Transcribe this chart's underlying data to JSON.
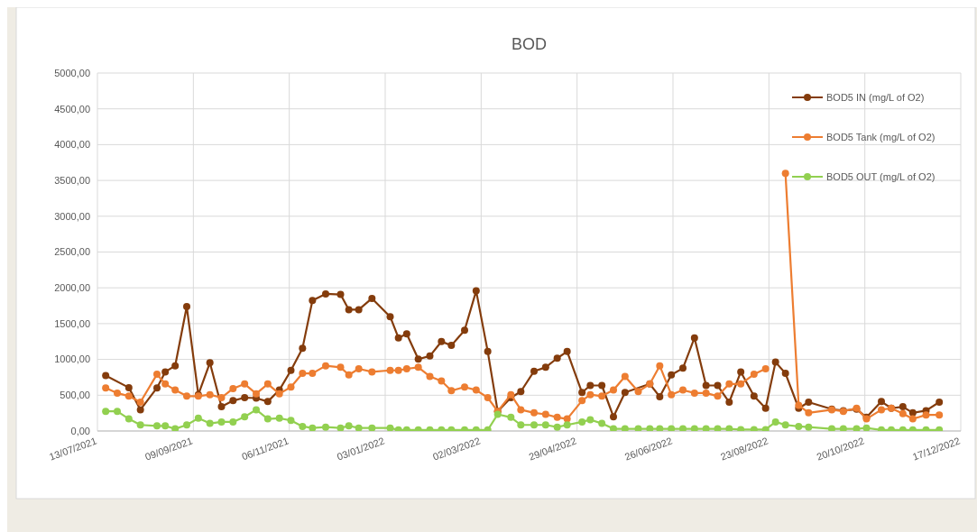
{
  "chart_data": {
    "type": "line",
    "title": "BOD",
    "marker": "circle",
    "grid": true,
    "legend": "top right",
    "xlim": [
      "2021-07-13",
      "2022-12-17"
    ],
    "xticks": [
      {
        "value": "2021-07-13",
        "label": "13/07/2021"
      },
      {
        "value": "2021-09-09",
        "label": "09/09/2021"
      },
      {
        "value": "2021-11-06",
        "label": "06/11/2021"
      },
      {
        "value": "2022-01-03",
        "label": "03/01/2022"
      },
      {
        "value": "2022-03-02",
        "label": "02/03/2022"
      },
      {
        "value": "2022-04-29",
        "label": "29/04/2022"
      },
      {
        "value": "2022-06-26",
        "label": "26/06/2022"
      },
      {
        "value": "2022-08-23",
        "label": "23/08/2022"
      },
      {
        "value": "2022-10-20",
        "label": "20/10/2022"
      },
      {
        "value": "2022-12-17",
        "label": "17/12/2022"
      }
    ],
    "ylim": [
      0,
      5000
    ],
    "yticks": [
      {
        "value": 0,
        "label": "0,00"
      },
      {
        "value": 500,
        "label": "500,00"
      },
      {
        "value": 1000,
        "label": "1000,00"
      },
      {
        "value": 1500,
        "label": "1500,00"
      },
      {
        "value": 2000,
        "label": "2000,00"
      },
      {
        "value": 2500,
        "label": "2500,00"
      },
      {
        "value": 3000,
        "label": "3000,00"
      },
      {
        "value": 3500,
        "label": "3500,00"
      },
      {
        "value": 4000,
        "label": "4000,00"
      },
      {
        "value": 4500,
        "label": "4500,00"
      },
      {
        "value": 5000,
        "label": "5000,00"
      }
    ],
    "x": [
      "2021-07-18",
      "2021-07-25",
      "2021-08-01",
      "2021-08-08",
      "2021-08-18",
      "2021-08-23",
      "2021-08-29",
      "2021-09-05",
      "2021-09-12",
      "2021-09-19",
      "2021-09-26",
      "2021-10-03",
      "2021-10-10",
      "2021-10-17",
      "2021-10-24",
      "2021-10-31",
      "2021-11-07",
      "2021-11-14",
      "2021-11-20",
      "2021-11-28",
      "2021-12-07",
      "2021-12-12",
      "2021-12-18",
      "2021-12-26",
      "2022-01-06",
      "2022-01-11",
      "2022-01-16",
      "2022-01-23",
      "2022-01-30",
      "2022-02-06",
      "2022-02-12",
      "2022-02-20",
      "2022-02-27",
      "2022-03-06",
      "2022-03-12",
      "2022-03-20",
      "2022-03-26",
      "2022-04-03",
      "2022-04-10",
      "2022-04-17",
      "2022-04-23",
      "2022-05-02",
      "2022-05-07",
      "2022-05-14",
      "2022-05-21",
      "2022-05-28",
      "2022-06-05",
      "2022-06-12",
      "2022-06-18",
      "2022-06-25",
      "2022-07-02",
      "2022-07-09",
      "2022-07-16",
      "2022-07-23",
      "2022-07-30",
      "2022-08-06",
      "2022-08-14",
      "2022-08-21",
      "2022-08-27",
      "2022-09-02",
      "2022-09-10",
      "2022-09-16",
      "2022-09-30",
      "2022-10-07",
      "2022-10-15",
      "2022-10-21",
      "2022-10-30",
      "2022-11-05",
      "2022-11-12",
      "2022-11-18",
      "2022-11-26",
      "2022-12-04"
    ],
    "series": [
      {
        "name": "BOD5 IN (mg/L of O2)",
        "color": "#843c0c",
        "x": [
          "2021-07-18",
          "2021-08-01",
          "2021-08-08",
          "2021-08-18",
          "2021-08-23",
          "2021-08-29",
          "2021-09-05",
          "2021-09-12",
          "2021-09-19",
          "2021-09-26",
          "2021-10-03",
          "2021-10-10",
          "2021-10-17",
          "2021-10-24",
          "2021-10-31",
          "2021-11-07",
          "2021-11-14",
          "2021-11-20",
          "2021-11-28",
          "2021-12-07",
          "2021-12-12",
          "2021-12-18",
          "2021-12-26",
          "2022-01-06",
          "2022-01-11",
          "2022-01-16",
          "2022-01-23",
          "2022-01-30",
          "2022-02-06",
          "2022-02-12",
          "2022-02-20",
          "2022-02-27",
          "2022-03-06",
          "2022-03-12",
          "2022-03-20",
          "2022-03-26",
          "2022-04-03",
          "2022-04-10",
          "2022-04-17",
          "2022-04-23",
          "2022-05-02",
          "2022-05-07",
          "2022-05-14",
          "2022-05-21",
          "2022-05-28",
          "2022-06-12",
          "2022-06-18",
          "2022-06-25",
          "2022-07-02",
          "2022-07-09",
          "2022-07-16",
          "2022-07-23",
          "2022-07-30",
          "2022-08-06",
          "2022-08-14",
          "2022-08-21",
          "2022-08-27",
          "2022-09-02",
          "2022-09-10",
          "2022-09-16",
          "2022-09-30",
          "2022-10-07",
          "2022-10-15",
          "2022-10-21",
          "2022-10-30",
          "2022-11-05",
          "2022-11-12",
          "2022-11-18",
          "2022-11-26",
          "2022-12-04"
        ],
        "values": [
          775,
          606,
          297,
          602,
          826,
          911,
          1737,
          508,
          953,
          339,
          424,
          466,
          460,
          411,
          572,
          847,
          1157,
          1822,
          1915,
          1907,
          1695,
          1695,
          1852,
          1597,
          1301,
          1356,
          1004,
          1047,
          1250,
          1195,
          1407,
          1957,
          1110,
          275,
          466,
          551,
          835,
          890,
          1017,
          1110,
          538,
          636,
          636,
          199,
          538,
          657,
          479,
          784,
          877,
          1301,
          636,
          636,
          403,
          826,
          487,
          318,
          962,
          805,
          318,
          403,
          305,
          284,
          305,
          191,
          411,
          318,
          339,
          254,
          284,
          403
        ]
      },
      {
        "name": "BOD5 Tank (mg/L of O2)",
        "color": "#ed7d31",
        "values": [
          602,
          530,
          487,
          403,
          792,
          657,
          572,
          487,
          487,
          508,
          466,
          593,
          657,
          521,
          657,
          521,
          614,
          805,
          805,
          911,
          890,
          784,
          869,
          826,
          847,
          847,
          869,
          890,
          763,
          699,
          564,
          614,
          572,
          466,
          275,
          508,
          297,
          254,
          233,
          191,
          169,
          424,
          508,
          487,
          572,
          763,
          551,
          657,
          911,
          508,
          572,
          530,
          530,
          487,
          657,
          657,
          792,
          869,
          null,
          3600,
          360,
          254,
          297,
          275,
          318,
          169,
          297,
          318,
          242,
          169,
          225,
          225
        ]
      },
      {
        "name": "BOD5 OUT (mg/L of O2)",
        "color": "#92d050",
        "values": [
          275,
          275,
          169,
          85,
          72,
          72,
          30,
          85,
          178,
          106,
          127,
          127,
          199,
          297,
          169,
          178,
          148,
          64,
          42,
          55,
          42,
          72,
          42,
          42,
          42,
          15,
          15,
          15,
          15,
          15,
          15,
          15,
          15,
          15,
          233,
          191,
          85,
          85,
          85,
          55,
          85,
          127,
          157,
          106,
          30,
          30,
          30,
          30,
          30,
          30,
          30,
          30,
          30,
          30,
          30,
          20,
          20,
          20,
          127,
          85,
          64,
          55,
          30,
          30,
          30,
          42,
          15,
          15,
          15,
          15,
          15,
          15
        ]
      }
    ]
  }
}
